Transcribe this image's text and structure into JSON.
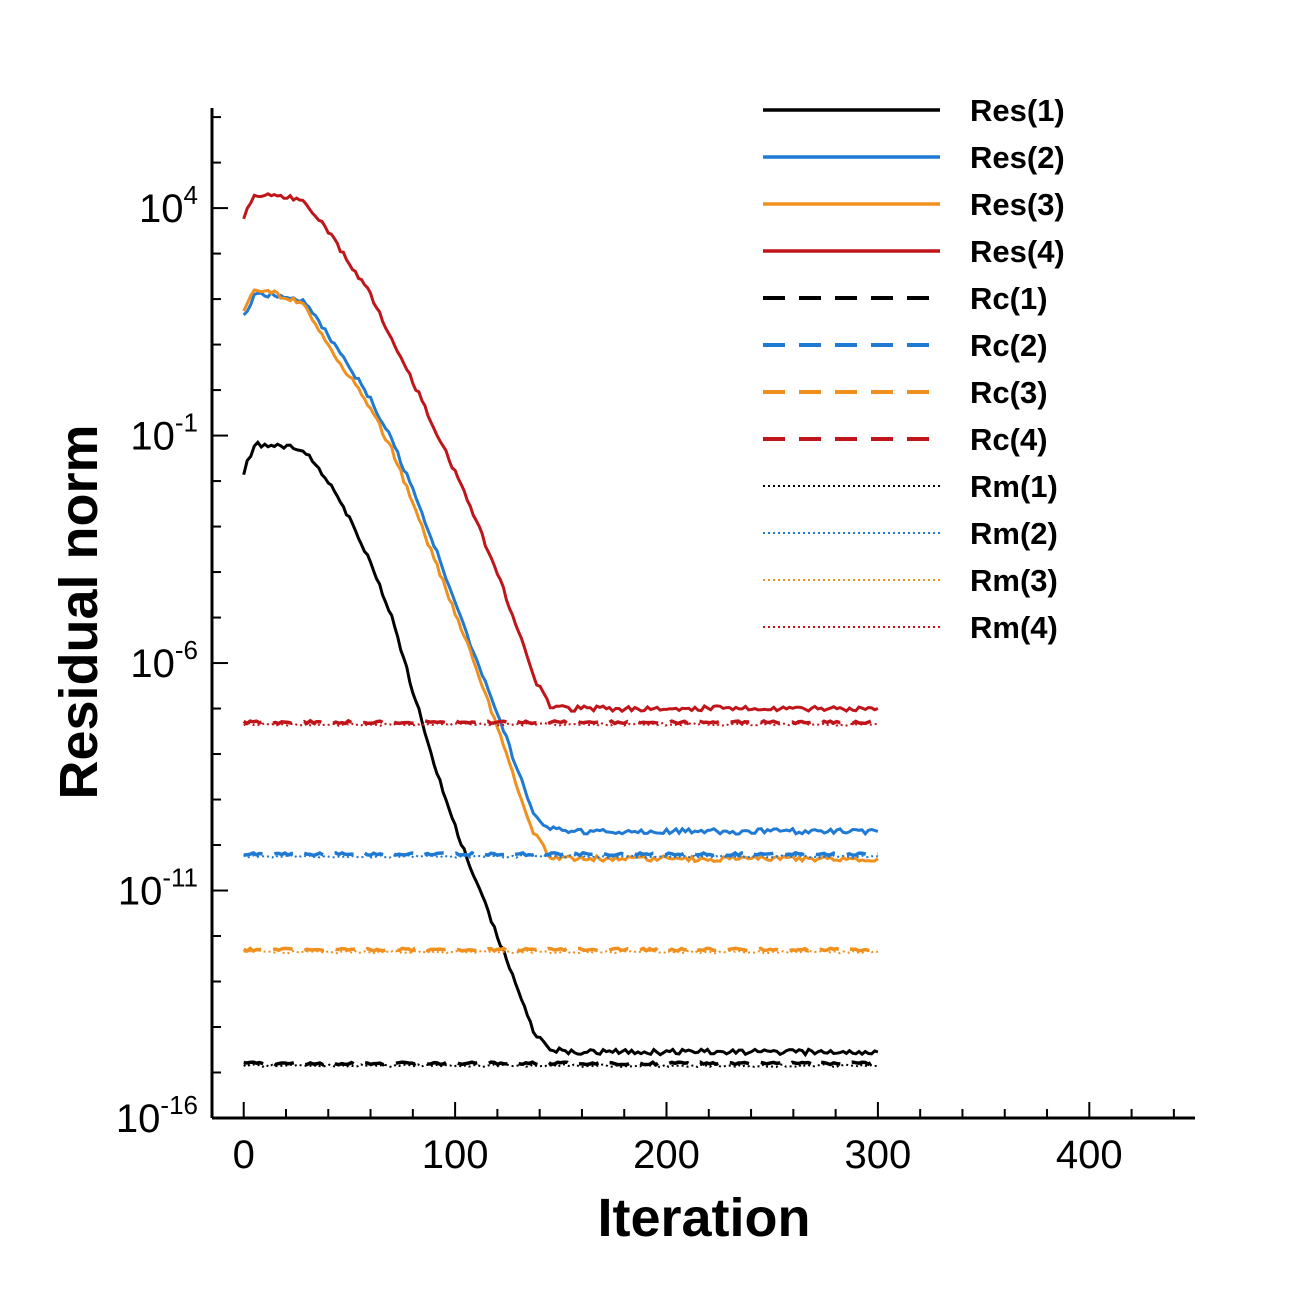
{
  "chart_data": {
    "type": "line",
    "title": "",
    "xlabel": "Iteration",
    "ylabel": "Residual norm",
    "xlim": [
      -15,
      450
    ],
    "ylim_log10": [
      -16,
      6.2
    ],
    "yscale": "log",
    "x_ticks": [
      0,
      100,
      200,
      300,
      400
    ],
    "x_tick_labels": [
      "0",
      "100",
      "200",
      "300",
      "400"
    ],
    "y_ticks_log10": [
      4,
      -1,
      -6,
      -11,
      -16
    ],
    "y_tick_labels": [
      {
        "base": "10",
        "exp": "4"
      },
      {
        "base": "10",
        "exp": "-1"
      },
      {
        "base": "10",
        "exp": "-6"
      },
      {
        "base": "10",
        "exp": "-11"
      },
      {
        "base": "10",
        "exp": "-16"
      }
    ],
    "legend_position": "top-right",
    "series": [
      {
        "name": "Res(1)",
        "color": "#000000",
        "style": "solid",
        "x": [
          0,
          5,
          10,
          28,
          40,
          50,
          60,
          70,
          80,
          90,
          100,
          110,
          120,
          130,
          137,
          145,
          155,
          200,
          300
        ],
        "log10_y": [
          -1.8,
          -1.2,
          -1.2,
          -1.3,
          -2.0,
          -2.8,
          -3.8,
          -5.0,
          -6.6,
          -8.2,
          -9.6,
          -10.8,
          -12.0,
          -13.2,
          -14.1,
          -14.5,
          -14.55,
          -14.55,
          -14.55
        ]
      },
      {
        "name": "Res(2)",
        "color": "#1f7ad4",
        "style": "solid",
        "x": [
          0,
          5,
          10,
          28,
          40,
          50,
          60,
          70,
          80,
          90,
          100,
          110,
          120,
          130,
          137,
          145,
          155,
          200,
          300
        ],
        "log10_y": [
          1.6,
          2.1,
          2.1,
          2.0,
          1.2,
          0.5,
          -0.2,
          -1.1,
          -2.2,
          -3.4,
          -4.7,
          -5.9,
          -7.1,
          -8.4,
          -9.3,
          -9.65,
          -9.7,
          -9.7,
          -9.7
        ]
      },
      {
        "name": "Res(3)",
        "color": "#f0901e",
        "style": "solid",
        "x": [
          0,
          5,
          10,
          28,
          40,
          50,
          60,
          70,
          80,
          90,
          100,
          110,
          120,
          130,
          137,
          145,
          155,
          200,
          300
        ],
        "log10_y": [
          1.7,
          2.2,
          2.2,
          1.9,
          1.0,
          0.3,
          -0.4,
          -1.3,
          -2.5,
          -3.7,
          -4.9,
          -6.1,
          -7.4,
          -8.8,
          -9.7,
          -10.25,
          -10.3,
          -10.3,
          -10.3
        ]
      },
      {
        "name": "Res(4)",
        "color": "#c0151a",
        "style": "solid",
        "x": [
          0,
          5,
          10,
          28,
          40,
          50,
          60,
          70,
          80,
          90,
          100,
          110,
          120,
          130,
          137,
          145,
          155,
          200,
          300
        ],
        "log10_y": [
          3.8,
          4.3,
          4.3,
          4.2,
          3.5,
          2.8,
          2.1,
          1.1,
          0.2,
          -0.8,
          -1.8,
          -2.9,
          -4.0,
          -5.3,
          -6.3,
          -6.95,
          -7.0,
          -7.0,
          -7.0
        ]
      },
      {
        "name": "Rc(1)",
        "color": "#000000",
        "style": "dashed",
        "x": [
          0,
          300
        ],
        "log10_y": [
          -14.8,
          -14.8
        ]
      },
      {
        "name": "Rc(2)",
        "color": "#1f7ad4",
        "style": "dashed",
        "x": [
          0,
          300
        ],
        "log10_y": [
          -10.2,
          -10.2
        ]
      },
      {
        "name": "Rc(3)",
        "color": "#f0901e",
        "style": "dashed",
        "x": [
          0,
          300
        ],
        "log10_y": [
          -12.3,
          -12.3
        ]
      },
      {
        "name": "Rc(4)",
        "color": "#c0151a",
        "style": "dashed",
        "x": [
          0,
          300
        ],
        "log10_y": [
          -7.3,
          -7.3
        ]
      },
      {
        "name": "Rm(1)",
        "color": "#000000",
        "style": "dotted",
        "x": [
          0,
          300
        ],
        "log10_y": [
          -14.85,
          -14.85
        ]
      },
      {
        "name": "Rm(2)",
        "color": "#1f7ad4",
        "style": "dotted",
        "x": [
          0,
          300
        ],
        "log10_y": [
          -10.25,
          -10.25
        ]
      },
      {
        "name": "Rm(3)",
        "color": "#f0901e",
        "style": "dotted",
        "x": [
          0,
          300
        ],
        "log10_y": [
          -12.35,
          -12.35
        ]
      },
      {
        "name": "Rm(4)",
        "color": "#c0151a",
        "style": "dotted",
        "x": [
          0,
          300
        ],
        "log10_y": [
          -7.35,
          -7.35
        ]
      }
    ]
  }
}
